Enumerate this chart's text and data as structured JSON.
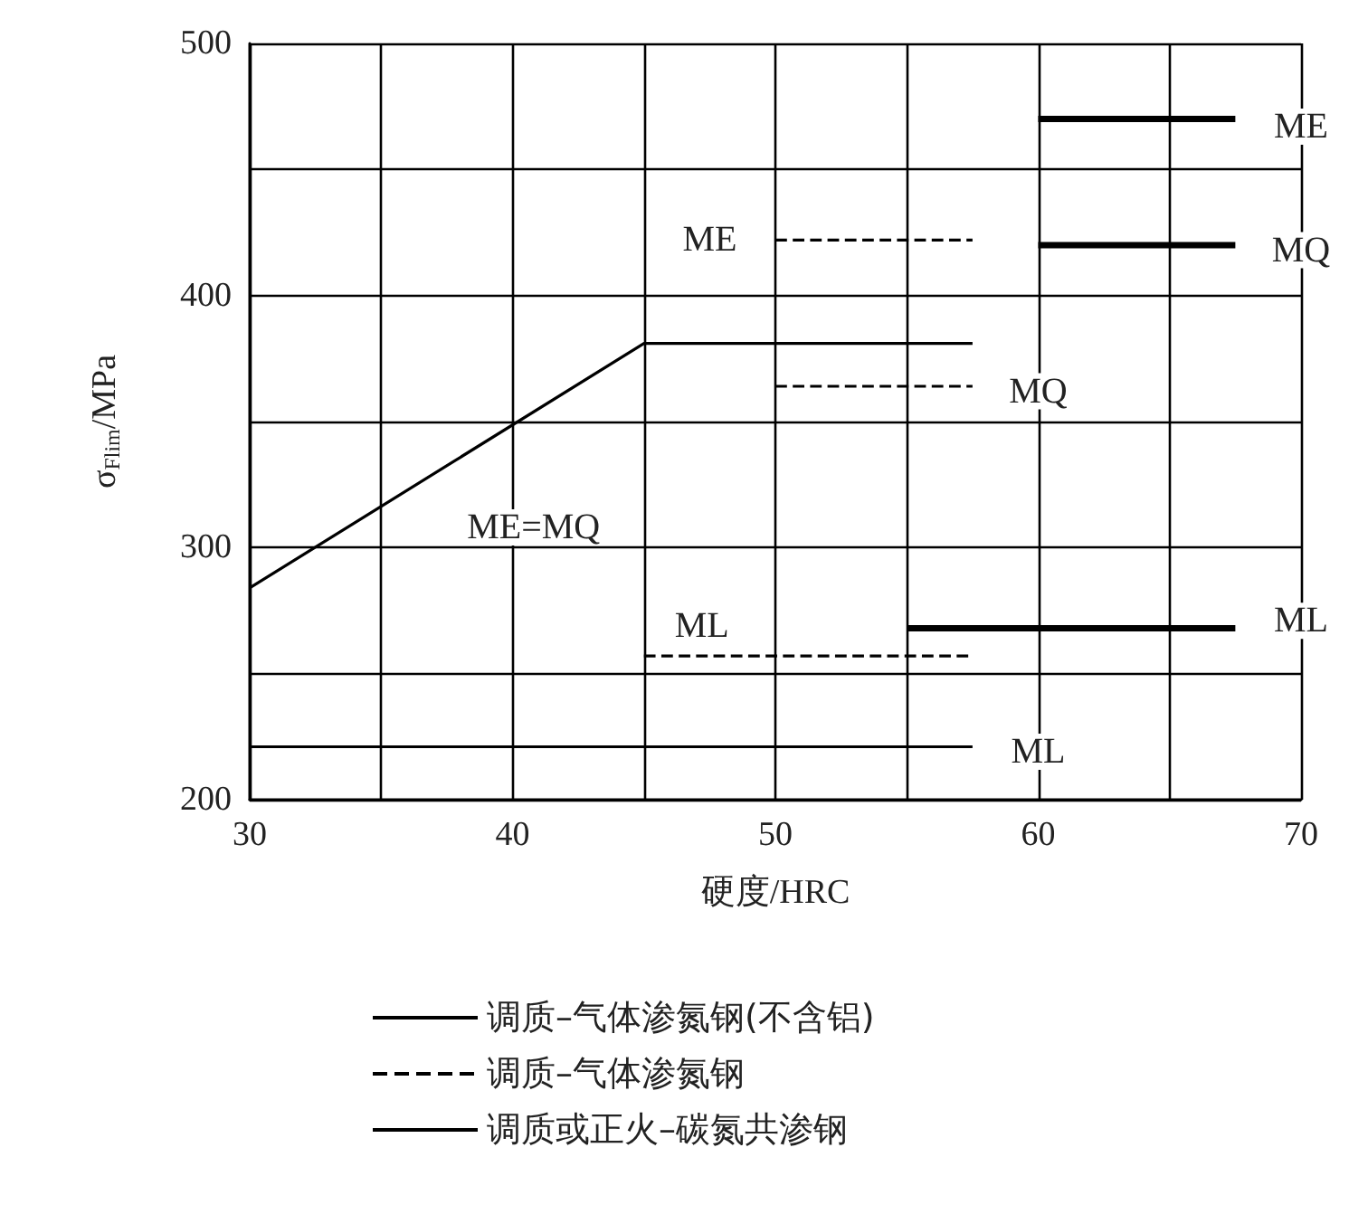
{
  "chart_data": {
    "type": "line",
    "xlabel": "硬度/HRC",
    "ylabel": "σ$_{Flim}$/MPa",
    "xlim": [
      30,
      70
    ],
    "ylim": [
      200,
      500
    ],
    "xticks": [
      30,
      {
        "value": 35,
        "label": null
      },
      40,
      {
        "value": 45,
        "label": null
      },
      50,
      {
        "value": 55,
        "label": null
      },
      60,
      {
        "value": 65,
        "label": null
      },
      70
    ],
    "yticks": [
      200,
      {
        "value": 250,
        "label": null
      },
      300,
      {
        "value": 350,
        "label": null
      },
      400,
      {
        "value": 450,
        "label": null
      },
      500
    ],
    "grid": true,
    "legend": "bottom",
    "marker": "none",
    "series": [
      {
        "name": "调质–气体渗氮钢(不含铝)",
        "color": "#000000",
        "line_style": "solid",
        "x": [
          60,
          67.5
        ],
        "values": [
          470,
          470
        ]
      },
      {
        "color": "#000000",
        "line_style": "solid",
        "x": [
          60,
          67.5
        ],
        "values": [
          420,
          420
        ]
      },
      {
        "color": "#000000",
        "line_style": "solid",
        "x": [
          55,
          67.5
        ],
        "values": [
          268,
          268
        ]
      },
      {
        "name": "调质–气体渗氮钢",
        "color": "#000000",
        "line_style": "dashed",
        "x": [
          50,
          57.5
        ],
        "values": [
          422,
          422
        ]
      },
      {
        "color": "#000000",
        "line_style": "dashed",
        "x": [
          50,
          57.5
        ],
        "values": [
          364,
          364
        ]
      },
      {
        "color": "#000000",
        "line_style": "dashed",
        "x": [
          45,
          57.5
        ],
        "values": [
          257,
          257
        ]
      },
      {
        "name": "调质或正火–碳氮共渗钢",
        "color": "#000000",
        "line_style": "solid",
        "x": [
          30,
          45,
          57.5
        ],
        "values": [
          284,
          381,
          381
        ]
      },
      {
        "color": "#000000",
        "line_style": "solid",
        "x": [
          30,
          57.5
        ],
        "values": [
          221,
          221
        ]
      }
    ],
    "annotations": [
      {
        "text": "ME",
        "x": 70,
        "y": 467
      },
      {
        "text": "MQ",
        "x": 70,
        "y": 418
      },
      {
        "text": "ML",
        "x": 70,
        "y": 271
      },
      {
        "text": "ME",
        "x": 47.5,
        "y": 422
      },
      {
        "text": "MQ",
        "x": 60,
        "y": 362
      },
      "ME=MQ",
      {
        "text": "ML",
        "x": 47.2,
        "y": 269
      },
      {
        "text": "ML",
        "x": 60,
        "y": 219
      }
    ]
  }
}
